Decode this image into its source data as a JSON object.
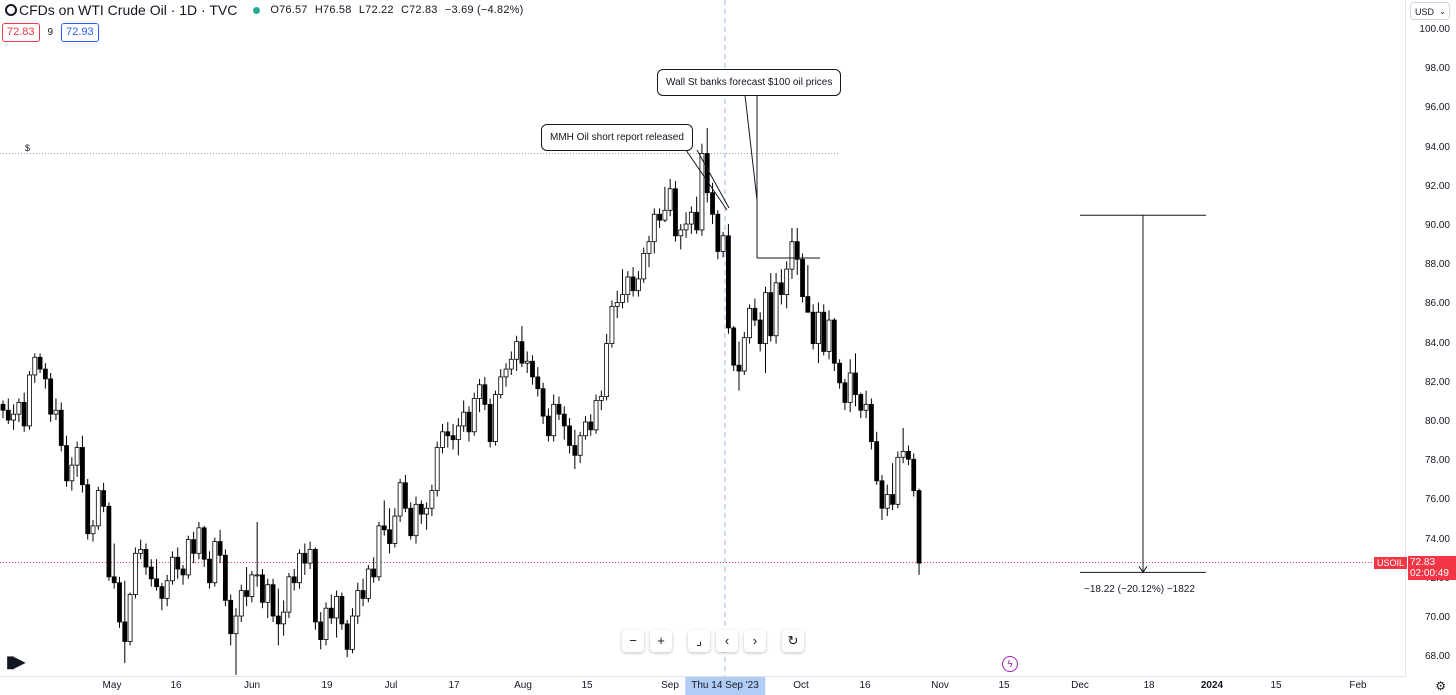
{
  "header": {
    "title": "CFDs on WTI Crude Oil · 1D · TVC",
    "open": "O76.57",
    "high": "H76.58",
    "low": "L72.22",
    "close": "C72.83",
    "change": "−3.69 (−4.82%)",
    "sell_price": "72.83",
    "spread": "9",
    "buy_price": "72.93",
    "market_status_color": "#22ab94"
  },
  "axis": {
    "currency": "USD",
    "price_labels": [
      "100.00",
      "98.00",
      "96.00",
      "94.00",
      "92.00",
      "90.00",
      "88.00",
      "86.00",
      "84.00",
      "82.00",
      "80.00",
      "78.00",
      "76.00",
      "74.00",
      "72.00",
      "70.00",
      "68.00"
    ],
    "current_price": "72.83",
    "countdown": "02:00:49",
    "symbol": "USOIL",
    "date_labels": [
      "May",
      "16",
      "Jun",
      "19",
      "Jul",
      "17",
      "Aug",
      "15",
      "Sep",
      "Oct",
      "16",
      "Nov",
      "15",
      "Dec",
      "18",
      "2024",
      "15",
      "Feb"
    ],
    "crosshair_date": "Thu 14 Sep '23"
  },
  "annotations": {
    "callout1": "MMH Oil short report released",
    "callout2": "Wall St banks forecast $100 oil prices",
    "measure": "−18.22 (−20.12%) −1822",
    "dollar_marker": "$"
  },
  "chart_data": {
    "type": "candlestick",
    "symbol": "USOIL",
    "ylim": [
      67,
      101
    ],
    "current_price": 72.83,
    "callout_price": 93.7,
    "measure": {
      "from": 90.55,
      "to": 72.33
    },
    "colors": {
      "up": "#ffffff",
      "down": "#000000",
      "wick": "#000000",
      "price_line": "#f23645",
      "crosshair": "#9db7e0"
    },
    "candles": [
      [
        80.9,
        81.1,
        80.2,
        80.6
      ],
      [
        80.6,
        81.2,
        79.9,
        80.1
      ],
      [
        80.1,
        80.9,
        79.6,
        80.4
      ],
      [
        80.4,
        81.2,
        80.0,
        81.0
      ],
      [
        81.0,
        81.5,
        79.5,
        79.8
      ],
      [
        79.8,
        82.6,
        79.6,
        82.4
      ],
      [
        82.4,
        83.5,
        82.0,
        83.3
      ],
      [
        83.3,
        83.5,
        82.5,
        82.7
      ],
      [
        82.7,
        83.0,
        81.7,
        82.2
      ],
      [
        82.2,
        82.5,
        80.0,
        80.4
      ],
      [
        80.4,
        81.2,
        80.1,
        80.6
      ],
      [
        80.6,
        81.0,
        78.5,
        78.8
      ],
      [
        78.8,
        79.3,
        76.7,
        77.0
      ],
      [
        77.0,
        78.2,
        76.5,
        77.8
      ],
      [
        77.8,
        79.0,
        77.2,
        78.7
      ],
      [
        78.7,
        79.3,
        76.4,
        76.8
      ],
      [
        76.8,
        77.1,
        74.0,
        74.3
      ],
      [
        74.3,
        75.0,
        73.9,
        74.7
      ],
      [
        74.7,
        76.7,
        74.5,
        76.5
      ],
      [
        76.5,
        76.9,
        75.4,
        75.7
      ],
      [
        75.7,
        75.9,
        71.9,
        72.1
      ],
      [
        72.1,
        73.8,
        71.5,
        71.8
      ],
      [
        71.8,
        72.1,
        69.5,
        69.8
      ],
      [
        69.8,
        71.9,
        67.7,
        68.8
      ],
      [
        68.8,
        71.3,
        68.6,
        71.2
      ],
      [
        71.2,
        73.6,
        71.0,
        73.3
      ],
      [
        73.3,
        74.0,
        73.0,
        73.5
      ],
      [
        73.5,
        73.8,
        72.2,
        72.6
      ],
      [
        72.6,
        73.0,
        71.6,
        72.0
      ],
      [
        72.0,
        73.0,
        71.4,
        71.6
      ],
      [
        71.6,
        71.8,
        70.4,
        71.0
      ],
      [
        71.0,
        72.2,
        70.6,
        71.9
      ],
      [
        71.9,
        73.4,
        71.7,
        73.1
      ],
      [
        73.1,
        73.6,
        72.0,
        72.5
      ],
      [
        72.5,
        72.7,
        71.7,
        72.2
      ],
      [
        72.2,
        74.2,
        72.0,
        74.0
      ],
      [
        74.0,
        74.4,
        72.8,
        73.3
      ],
      [
        73.3,
        74.9,
        73.0,
        74.6
      ],
      [
        74.6,
        74.7,
        72.6,
        73.0
      ],
      [
        73.0,
        73.4,
        71.5,
        71.8
      ],
      [
        71.8,
        74.1,
        71.6,
        73.9
      ],
      [
        73.9,
        74.5,
        72.8,
        73.2
      ],
      [
        73.2,
        73.5,
        70.6,
        70.9
      ],
      [
        70.9,
        71.2,
        68.6,
        69.2
      ],
      [
        69.2,
        70.5,
        67.1,
        70.1
      ],
      [
        70.1,
        71.7,
        69.8,
        71.4
      ],
      [
        71.4,
        72.6,
        70.6,
        71.1
      ],
      [
        71.1,
        72.4,
        70.8,
        72.2
      ],
      [
        72.2,
        74.9,
        71.6,
        72.2
      ],
      [
        72.2,
        72.5,
        70.5,
        70.8
      ],
      [
        70.8,
        72.0,
        70.0,
        71.7
      ],
      [
        71.7,
        72.0,
        69.8,
        70.1
      ],
      [
        70.1,
        71.5,
        68.6,
        69.7
      ],
      [
        69.7,
        70.9,
        69.1,
        70.3
      ],
      [
        70.3,
        72.3,
        70.0,
        72.1
      ],
      [
        72.1,
        72.5,
        71.4,
        71.8
      ],
      [
        71.8,
        73.5,
        71.5,
        73.3
      ],
      [
        73.3,
        73.8,
        72.2,
        72.8
      ],
      [
        72.8,
        73.9,
        72.5,
        73.5
      ],
      [
        73.5,
        73.6,
        69.4,
        69.8
      ],
      [
        69.8,
        70.3,
        68.4,
        68.9
      ],
      [
        68.9,
        70.8,
        68.6,
        70.5
      ],
      [
        70.5,
        71.2,
        69.7,
        70.0
      ],
      [
        70.0,
        71.4,
        69.0,
        71.1
      ],
      [
        71.1,
        71.3,
        69.4,
        69.7
      ],
      [
        69.7,
        69.9,
        68.0,
        68.4
      ],
      [
        68.4,
        70.5,
        68.2,
        70.1
      ],
      [
        70.1,
        71.8,
        69.7,
        71.4
      ],
      [
        71.4,
        72.0,
        70.6,
        71.0
      ],
      [
        71.0,
        72.7,
        70.8,
        72.5
      ],
      [
        72.5,
        73.1,
        71.8,
        72.1
      ],
      [
        72.1,
        74.9,
        71.9,
        74.7
      ],
      [
        74.7,
        76.0,
        74.2,
        74.5
      ],
      [
        74.5,
        75.6,
        73.3,
        73.8
      ],
      [
        73.8,
        75.6,
        73.6,
        75.2
      ],
      [
        75.2,
        77.1,
        74.9,
        76.9
      ],
      [
        76.9,
        77.3,
        75.4,
        75.6
      ],
      [
        75.6,
        75.9,
        74.0,
        74.2
      ],
      [
        74.2,
        76.2,
        73.8,
        75.8
      ],
      [
        75.8,
        76.0,
        74.8,
        75.3
      ],
      [
        75.3,
        75.9,
        74.5,
        75.6
      ],
      [
        75.6,
        76.8,
        75.2,
        76.5
      ],
      [
        76.5,
        79.0,
        76.2,
        78.7
      ],
      [
        78.7,
        79.9,
        78.4,
        79.5
      ],
      [
        79.5,
        80.0,
        78.7,
        79.3
      ],
      [
        79.3,
        79.9,
        78.6,
        79.1
      ],
      [
        79.1,
        80.2,
        78.3,
        79.8
      ],
      [
        79.8,
        81.1,
        79.5,
        80.5
      ],
      [
        80.5,
        80.8,
        79.0,
        79.5
      ],
      [
        79.5,
        81.5,
        79.3,
        81.2
      ],
      [
        81.2,
        82.2,
        80.5,
        81.9
      ],
      [
        81.9,
        82.3,
        80.6,
        80.9
      ],
      [
        80.9,
        81.2,
        78.7,
        79.0
      ],
      [
        79.0,
        81.6,
        78.8,
        81.4
      ],
      [
        81.4,
        82.7,
        81.2,
        82.3
      ],
      [
        82.3,
        83.0,
        81.8,
        82.7
      ],
      [
        82.7,
        83.6,
        82.4,
        83.2
      ],
      [
        83.2,
        84.4,
        82.6,
        84.1
      ],
      [
        84.1,
        84.9,
        82.8,
        83.0
      ],
      [
        83.0,
        83.6,
        82.5,
        83.1
      ],
      [
        83.1,
        83.4,
        81.9,
        82.3
      ],
      [
        82.3,
        82.8,
        81.3,
        81.7
      ],
      [
        81.7,
        82.0,
        79.9,
        80.3
      ],
      [
        80.3,
        80.7,
        79.0,
        79.3
      ],
      [
        79.3,
        81.4,
        79.0,
        80.9
      ],
      [
        80.9,
        81.3,
        80.1,
        80.4
      ],
      [
        80.4,
        80.8,
        79.1,
        79.8
      ],
      [
        79.8,
        80.2,
        78.4,
        78.8
      ],
      [
        78.8,
        79.6,
        77.6,
        78.3
      ],
      [
        78.3,
        79.5,
        77.9,
        79.3
      ],
      [
        79.3,
        80.3,
        79.1,
        80.0
      ],
      [
        80.0,
        80.4,
        79.3,
        79.6
      ],
      [
        79.6,
        81.4,
        79.4,
        81.1
      ],
      [
        81.1,
        81.6,
        80.6,
        81.3
      ],
      [
        81.3,
        84.5,
        81.1,
        84.0
      ],
      [
        84.0,
        86.2,
        83.8,
        85.9
      ],
      [
        85.9,
        86.7,
        85.3,
        86.1
      ],
      [
        86.1,
        87.8,
        85.8,
        86.5
      ],
      [
        86.5,
        87.7,
        86.1,
        87.4
      ],
      [
        87.4,
        87.9,
        86.4,
        86.7
      ],
      [
        86.7,
        87.7,
        86.4,
        87.3
      ],
      [
        87.3,
        88.9,
        87.1,
        88.6
      ],
      [
        88.6,
        89.5,
        87.9,
        89.2
      ],
      [
        89.2,
        90.9,
        88.6,
        90.6
      ],
      [
        90.6,
        90.9,
        89.9,
        90.3
      ],
      [
        90.3,
        92.0,
        90.2,
        90.8
      ],
      [
        90.8,
        92.4,
        90.5,
        91.9
      ],
      [
        91.9,
        92.3,
        89.2,
        89.5
      ],
      [
        89.5,
        90.1,
        88.8,
        89.8
      ],
      [
        89.8,
        90.7,
        89.4,
        90.1
      ],
      [
        90.1,
        91.0,
        89.6,
        90.7
      ],
      [
        90.7,
        91.5,
        89.6,
        89.8
      ],
      [
        89.8,
        94.2,
        89.5,
        93.7
      ],
      [
        93.7,
        95.0,
        91.2,
        91.7
      ],
      [
        91.7,
        92.2,
        90.1,
        90.6
      ],
      [
        90.6,
        90.8,
        88.3,
        88.7
      ],
      [
        88.7,
        89.7,
        88.4,
        89.5
      ],
      [
        89.5,
        90.1,
        84.5,
        84.8
      ],
      [
        84.8,
        84.9,
        82.6,
        82.9
      ],
      [
        82.9,
        84.1,
        81.6,
        82.6
      ],
      [
        82.6,
        84.6,
        82.4,
        84.3
      ],
      [
        84.3,
        86.0,
        84.0,
        85.8
      ],
      [
        85.8,
        86.3,
        84.9,
        85.2
      ],
      [
        85.2,
        85.6,
        83.6,
        84.0
      ],
      [
        84.0,
        86.9,
        82.5,
        86.6
      ],
      [
        86.6,
        87.6,
        84.1,
        84.4
      ],
      [
        84.4,
        87.6,
        84.0,
        87.1
      ],
      [
        87.1,
        87.8,
        86.0,
        86.5
      ],
      [
        86.5,
        88.2,
        85.8,
        87.8
      ],
      [
        87.8,
        89.9,
        87.3,
        89.2
      ],
      [
        89.2,
        89.9,
        87.5,
        88.3
      ],
      [
        88.3,
        88.6,
        86.1,
        86.4
      ],
      [
        86.4,
        88.0,
        85.8,
        85.6
      ],
      [
        85.6,
        86.0,
        83.7,
        84.0
      ],
      [
        84.0,
        86.1,
        83.0,
        85.6
      ],
      [
        85.6,
        86.0,
        83.4,
        83.6
      ],
      [
        83.6,
        85.7,
        83.2,
        85.2
      ],
      [
        85.2,
        85.3,
        82.6,
        83.0
      ],
      [
        83.0,
        83.2,
        81.7,
        82.0
      ],
      [
        82.0,
        82.2,
        80.6,
        81.0
      ],
      [
        81.0,
        83.2,
        80.5,
        82.5
      ],
      [
        82.5,
        83.5,
        80.8,
        81.4
      ],
      [
        81.4,
        81.5,
        80.2,
        80.6
      ],
      [
        80.6,
        81.6,
        80.2,
        80.9
      ],
      [
        80.9,
        81.2,
        78.6,
        79.0
      ],
      [
        79.0,
        79.5,
        76.8,
        77.0
      ],
      [
        77.0,
        77.3,
        75.0,
        75.6
      ],
      [
        75.6,
        76.8,
        75.2,
        76.3
      ],
      [
        76.3,
        77.9,
        75.5,
        75.8
      ],
      [
        75.8,
        78.5,
        75.6,
        78.2
      ],
      [
        78.2,
        79.7,
        77.9,
        78.5
      ],
      [
        78.5,
        78.8,
        77.8,
        78.1
      ],
      [
        78.1,
        78.4,
        76.2,
        76.5
      ],
      [
        76.5,
        76.6,
        72.2,
        72.8
      ]
    ]
  }
}
